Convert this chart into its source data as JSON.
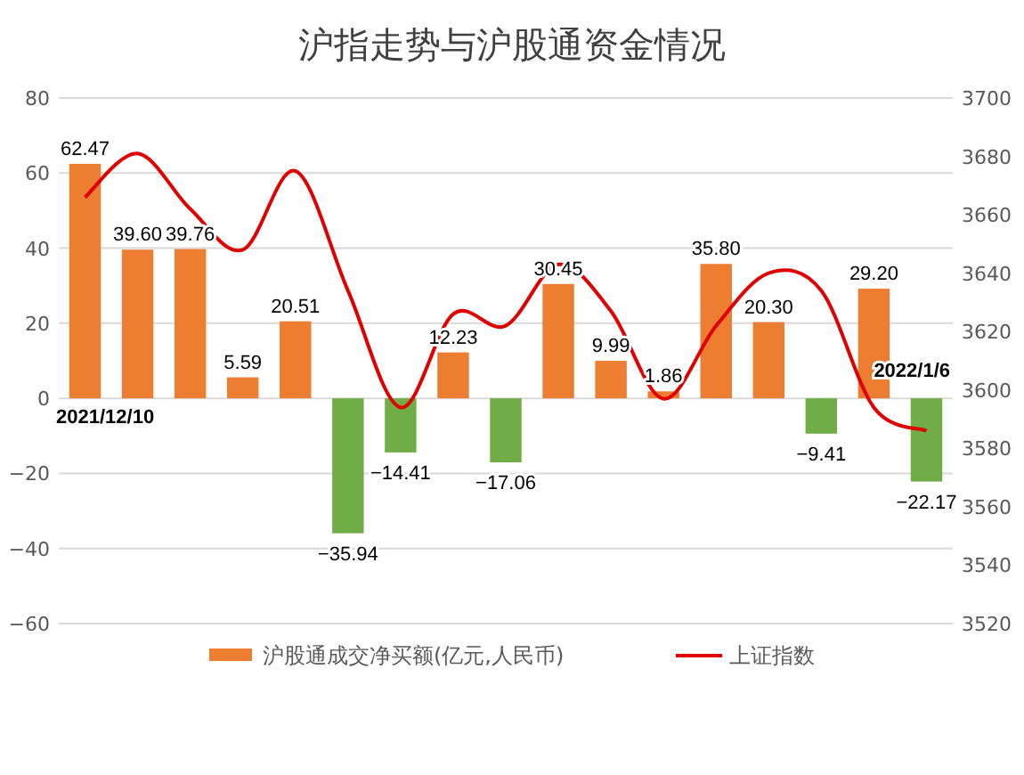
{
  "chart_data": {
    "type": "bar",
    "title": "沪指走势与沪股通资金情况",
    "categories": [
      null,
      null,
      null,
      null,
      null,
      null,
      null,
      null,
      null,
      null,
      null,
      null,
      null,
      null,
      null,
      null,
      null
    ],
    "annotations": [
      "2021/12/10",
      "2022/1/6"
    ],
    "series": [
      {
        "name": "沪股通成交净买额(亿元,人民币)",
        "color": "#ed7d31",
        "value_labels": [
          "62.47",
          "39.60",
          "39.76",
          "5.59",
          "20.51",
          "−35.94",
          "−14.41",
          "12.23",
          "−17.06",
          "30.45",
          "9.99",
          "1.86",
          "35.80",
          "20.30",
          "−9.41",
          "29.20",
          "−22.17"
        ],
        "colors": [
          "#ed7d31",
          "#ed7d31",
          "#ed7d31",
          "#ed7d31",
          "#ed7d31",
          "#70ad47",
          "#70ad47",
          "#ed7d31",
          "#70ad47",
          "#ed7d31",
          "#ed7d31",
          "#ed7d31",
          "#ed7d31",
          "#ed7d31",
          "#70ad47",
          "#ed7d31",
          "#70ad47"
        ],
        "values": [
          62.47,
          39.6,
          39.76,
          5.59,
          20.51,
          -35.94,
          -14.41,
          12.23,
          -17.06,
          30.45,
          9.99,
          1.86,
          35.8,
          20.3,
          -9.41,
          29.2,
          -22.17
        ]
      },
      {
        "name": "上证指数",
        "type": "line",
        "axis": "y2",
        "color": "#e00000",
        "values": [
          3666,
          3681,
          3662,
          3648,
          3675,
          3634,
          3594,
          3626,
          3622,
          3643,
          3627,
          3597,
          3622,
          3640,
          3634,
          3594,
          3586
        ]
      }
    ],
    "ylim": [
      -60,
      80
    ],
    "yticks": [
      -60,
      -40,
      -20,
      0,
      20,
      40,
      60,
      80
    ],
    "y2lim": [
      3520,
      3700
    ],
    "y2ticks": [
      3520,
      3540,
      3560,
      3580,
      3600,
      3620,
      3640,
      3660,
      3680,
      3700
    ],
    "grid": "y",
    "legend": "bottom",
    "marker": "none",
    "line_style": "solid"
  }
}
